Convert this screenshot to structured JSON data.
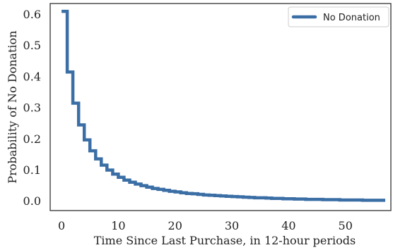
{
  "chart_data": {
    "type": "line",
    "step": true,
    "title": "",
    "xlabel": "Time Since Last Purchase, in 12-hour periods",
    "ylabel": "Probability of No Donation",
    "xlim": [
      -2,
      58
    ],
    "ylim": [
      -0.03,
      0.635
    ],
    "xticks": [
      0,
      10,
      20,
      30,
      40,
      50
    ],
    "yticks": [
      0.0,
      0.1,
      0.2,
      0.3,
      0.4,
      0.5,
      0.6
    ],
    "ytick_labels": [
      "0.0",
      "0.1",
      "0.2",
      "0.3",
      "0.4",
      "0.5",
      "0.6"
    ],
    "grid": false,
    "legend_position": "top-right",
    "series": [
      {
        "name": "No Donation",
        "color": "#3a6ea5",
        "x": [
          0,
          1,
          2,
          3,
          4,
          5,
          6,
          7,
          8,
          9,
          10,
          11,
          12,
          13,
          14,
          15,
          16,
          17,
          18,
          19,
          20,
          21,
          22,
          23,
          24,
          25,
          26,
          27,
          28,
          29,
          30,
          31,
          32,
          33,
          34,
          35,
          36,
          37,
          38,
          39,
          40,
          41,
          42,
          43,
          44,
          45,
          46,
          47,
          48,
          49,
          50,
          51,
          52,
          53,
          54,
          55,
          56,
          57
        ],
        "y": [
          0.61,
          0.415,
          0.315,
          0.245,
          0.197,
          0.162,
          0.136,
          0.116,
          0.1,
          0.087,
          0.077,
          0.068,
          0.061,
          0.055,
          0.05,
          0.045,
          0.041,
          0.038,
          0.035,
          0.032,
          0.03,
          0.027,
          0.025,
          0.024,
          0.022,
          0.02,
          0.019,
          0.018,
          0.017,
          0.016,
          0.015,
          0.014,
          0.013,
          0.012,
          0.011,
          0.011,
          0.01,
          0.009,
          0.009,
          0.008,
          0.008,
          0.007,
          0.007,
          0.006,
          0.006,
          0.006,
          0.005,
          0.005,
          0.005,
          0.004,
          0.004,
          0.004,
          0.004,
          0.003,
          0.003,
          0.003,
          0.003,
          0.003
        ]
      }
    ]
  }
}
